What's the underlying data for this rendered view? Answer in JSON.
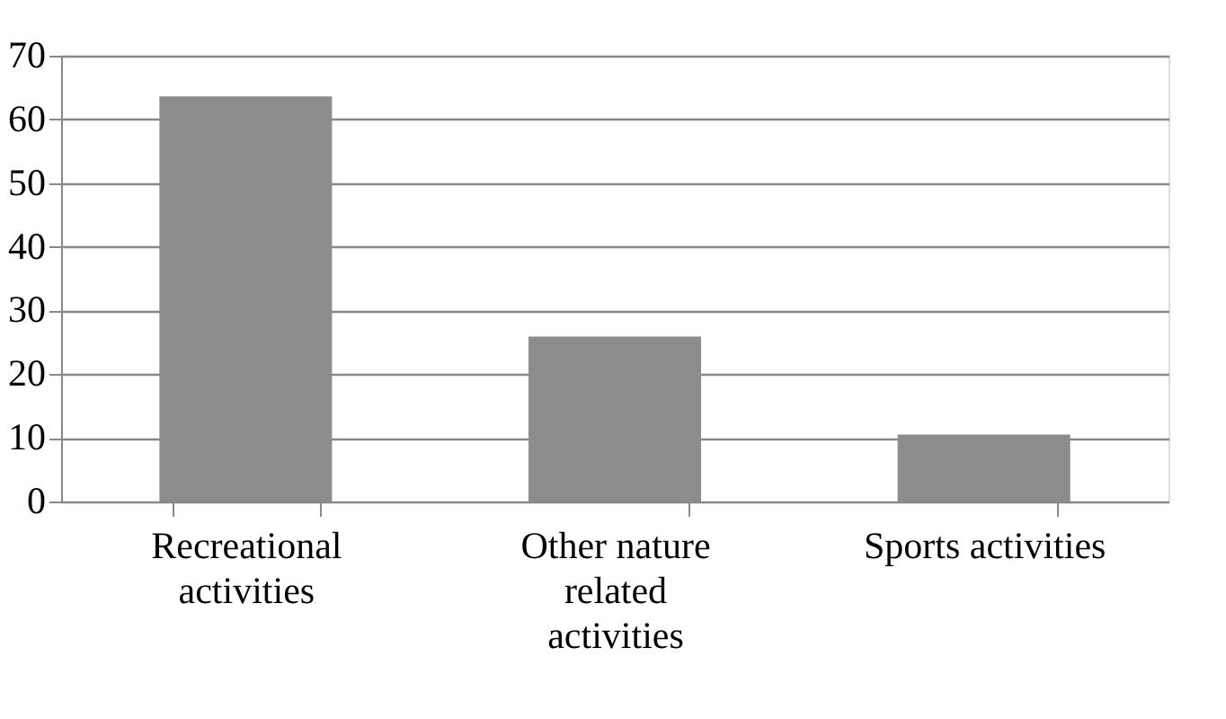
{
  "chart_data": {
    "type": "bar",
    "categories": [
      "Recreational activities",
      "Other nature related activities",
      "Sports activities"
    ],
    "values": [
      63.6,
      25.9,
      10.5
    ],
    "color": "#8c8c8c",
    "ylim": [
      0,
      70
    ],
    "yticks": [
      0,
      10,
      20,
      30,
      40,
      50,
      60,
      70
    ],
    "grid": "y"
  }
}
